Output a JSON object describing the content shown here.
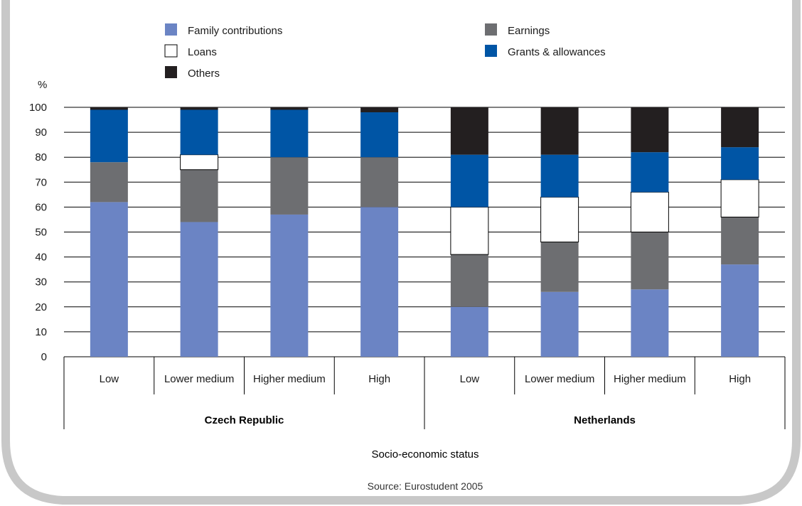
{
  "chart_data": {
    "type": "bar",
    "stacked": true,
    "ylabel": "%",
    "xlabel": "Socio-economic status",
    "source": "Source: Eurostudent 2005",
    "ylim": [
      0,
      100
    ],
    "yticks": [
      0,
      10,
      20,
      30,
      40,
      50,
      60,
      70,
      80,
      90,
      100
    ],
    "grid": true,
    "groups": [
      {
        "name": "Czech Republic",
        "categories": [
          "Low",
          "Lower medium",
          "Higher medium",
          "High"
        ]
      },
      {
        "name": "Netherlands",
        "categories": [
          "Low",
          "Lower medium",
          "Higher medium",
          "High"
        ]
      }
    ],
    "series": [
      {
        "name": "Family contributions",
        "color": "#6b84c4",
        "values": [
          62,
          54,
          57,
          60,
          20,
          26,
          27,
          37
        ]
      },
      {
        "name": "Earnings",
        "color": "#6d6e71",
        "values": [
          16,
          21,
          23,
          20,
          21,
          20,
          23,
          19
        ]
      },
      {
        "name": "Loans",
        "color": "#ffffff",
        "values": [
          0,
          6,
          0,
          0,
          19,
          18,
          16,
          15
        ]
      },
      {
        "name": "Grants & allowances",
        "color": "#0055a5",
        "values": [
          21,
          18,
          19,
          18,
          21,
          17,
          16,
          13
        ]
      },
      {
        "name": "Others",
        "color": "#231f20",
        "values": [
          1,
          1,
          1,
          2,
          19,
          19,
          18,
          16
        ]
      }
    ],
    "legend": "top"
  }
}
